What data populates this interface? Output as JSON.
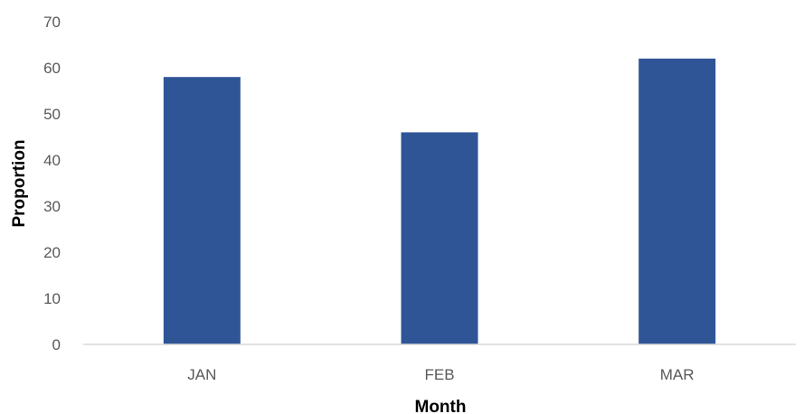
{
  "chart_data": {
    "type": "bar",
    "title": "",
    "xlabel": "Month",
    "ylabel": "Proportion",
    "categories": [
      "JAN",
      "FEB",
      "MAR"
    ],
    "values": [
      58,
      46,
      62
    ],
    "ylim": [
      0,
      70
    ],
    "yticks": [
      0,
      10,
      20,
      30,
      40,
      50,
      60,
      70
    ],
    "grid": false,
    "legend": "none",
    "bar_color": "#2f5597",
    "axis_color": "#d9d9d9"
  }
}
